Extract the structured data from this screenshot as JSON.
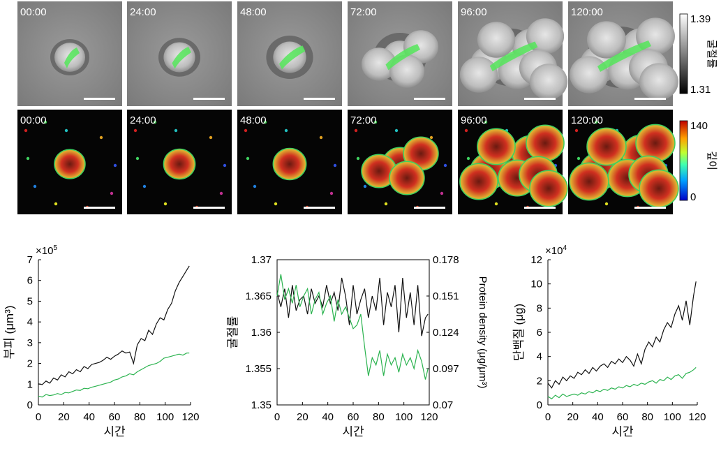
{
  "colors": {
    "black_series": "#111111",
    "green_series": "#2bb34f",
    "ri_overlay": "#55e65a",
    "cbar_hot": "#ff0000",
    "cbar_cold": "#0000ff"
  },
  "panel_a": {
    "time_labels": [
      "00:00",
      "24:00",
      "48:00",
      "72:00",
      "96:00",
      "120:00"
    ],
    "colorbar_ri": {
      "max": "1.39",
      "min": "1.31",
      "title": "굴절률"
    },
    "colorbar_depth": {
      "max": "140",
      "min": "0",
      "title": "깊이"
    }
  },
  "chart_data": [
    {
      "type": "line",
      "x_title": "시간",
      "y_title": "부피 (μm³)",
      "exponent": "×10",
      "exponent_power": "5",
      "xlim": [
        0,
        120
      ],
      "ylim": [
        0,
        7
      ],
      "xticks": [
        "0",
        "20",
        "40",
        "60",
        "80",
        "100",
        "120"
      ],
      "yticks": [
        "0",
        "1",
        "2",
        "3",
        "4",
        "5",
        "6",
        "7"
      ],
      "x": [
        0,
        3,
        6,
        9,
        12,
        15,
        18,
        21,
        24,
        27,
        30,
        33,
        36,
        39,
        42,
        45,
        48,
        51,
        54,
        57,
        60,
        63,
        66,
        69,
        72,
        75,
        78,
        81,
        84,
        87,
        90,
        93,
        96,
        99,
        102,
        105,
        108,
        111,
        114,
        117,
        119
      ],
      "series": [
        {
          "values": [
            1.02,
            0.98,
            1.15,
            1.05,
            1.3,
            1.2,
            1.45,
            1.35,
            1.6,
            1.5,
            1.7,
            1.6,
            1.85,
            1.75,
            1.95,
            2.0,
            2.05,
            2.15,
            2.3,
            2.2,
            2.35,
            2.45,
            2.6,
            2.5,
            2.55,
            2.0,
            2.9,
            3.2,
            3.1,
            3.6,
            3.4,
            3.9,
            4.2,
            4.1,
            4.6,
            4.9,
            5.5,
            5.9,
            6.2,
            6.5,
            6.7
          ]
        },
        {
          "values": [
            0.42,
            0.38,
            0.5,
            0.45,
            0.48,
            0.55,
            0.5,
            0.6,
            0.58,
            0.65,
            0.72,
            0.7,
            0.8,
            0.78,
            0.85,
            0.9,
            0.95,
            1.0,
            1.05,
            1.1,
            1.2,
            1.25,
            1.35,
            1.4,
            1.5,
            1.45,
            1.6,
            1.7,
            1.8,
            1.9,
            1.95,
            2.0,
            2.1,
            2.25,
            2.3,
            2.35,
            2.4,
            2.45,
            2.4,
            2.5,
            2.5
          ]
        }
      ]
    },
    {
      "type": "line",
      "x_title": "시간",
      "y_title": "굴절률",
      "y2_title": "Protein density (μg/μm³)",
      "xlim": [
        0,
        120
      ],
      "ylim": [
        1.35,
        1.37
      ],
      "y2lim": [
        0.07,
        0.178
      ],
      "xticks": [
        "0",
        "20",
        "40",
        "60",
        "80",
        "100",
        "120"
      ],
      "yticks": [
        "1.35",
        "1.355",
        "1.36",
        "1.365",
        "1.37"
      ],
      "y2ticks": [
        "0.07",
        "0.097",
        "0.124",
        "0.151",
        "0.178"
      ],
      "x": [
        0,
        3,
        6,
        9,
        12,
        15,
        18,
        21,
        24,
        27,
        30,
        33,
        36,
        39,
        42,
        45,
        48,
        51,
        54,
        57,
        60,
        63,
        66,
        69,
        72,
        75,
        78,
        81,
        84,
        87,
        90,
        93,
        96,
        99,
        102,
        105,
        108,
        111,
        114,
        117,
        119
      ],
      "series": [
        {
          "values": [
            1.3655,
            1.3635,
            1.366,
            1.362,
            1.3665,
            1.363,
            1.3645,
            1.365,
            1.3625,
            1.366,
            1.364,
            1.365,
            1.3635,
            1.3665,
            1.364,
            1.3655,
            1.363,
            1.3675,
            1.365,
            1.361,
            1.3665,
            1.3625,
            1.3645,
            1.366,
            1.362,
            1.365,
            1.363,
            1.3675,
            1.361,
            1.3655,
            1.3635,
            1.3665,
            1.36,
            1.3675,
            1.362,
            1.3655,
            1.361,
            1.3665,
            1.3595,
            1.362,
            1.3625
          ]
        },
        {
          "values": [
            1.365,
            1.368,
            1.3645,
            1.366,
            1.364,
            1.3665,
            1.3635,
            1.365,
            1.366,
            1.3625,
            1.3645,
            1.3655,
            1.3625,
            1.364,
            1.365,
            1.3615,
            1.3645,
            1.3625,
            1.3635,
            1.362,
            1.3605,
            1.361,
            1.3625,
            1.358,
            1.354,
            1.3565,
            1.3555,
            1.3575,
            1.354,
            1.357,
            1.3555,
            1.3565,
            1.3545,
            1.357,
            1.3555,
            1.3565,
            1.355,
            1.3575,
            1.356,
            1.3535,
            1.355
          ]
        }
      ]
    },
    {
      "type": "line",
      "x_title": "시간",
      "y_title": "단백질 (μg)",
      "exponent": "×10",
      "exponent_power": "4",
      "xlim": [
        0,
        120
      ],
      "ylim": [
        0,
        12
      ],
      "xticks": [
        "0",
        "20",
        "40",
        "60",
        "80",
        "100",
        "120"
      ],
      "yticks": [
        "0",
        "2",
        "4",
        "6",
        "8",
        "10",
        "12"
      ],
      "x": [
        0,
        3,
        6,
        9,
        12,
        15,
        18,
        21,
        24,
        27,
        30,
        33,
        36,
        39,
        42,
        45,
        48,
        51,
        54,
        57,
        60,
        63,
        66,
        69,
        72,
        75,
        78,
        81,
        84,
        87,
        90,
        93,
        96,
        99,
        102,
        105,
        108,
        111,
        114,
        117,
        119
      ],
      "series": [
        {
          "values": [
            1.8,
            1.4,
            2.0,
            1.7,
            2.3,
            2.0,
            2.4,
            2.2,
            2.7,
            2.5,
            2.9,
            2.6,
            3.1,
            2.8,
            3.2,
            3.4,
            3.1,
            3.6,
            3.4,
            3.8,
            3.5,
            4.0,
            3.7,
            3.2,
            4.2,
            3.4,
            4.6,
            5.2,
            4.8,
            5.6,
            5.2,
            6.2,
            6.8,
            6.4,
            7.5,
            8.2,
            7.0,
            8.6,
            6.6,
            9.0,
            10.2
          ]
        },
        {
          "values": [
            0.7,
            0.5,
            0.8,
            0.6,
            0.9,
            0.7,
            0.8,
            0.9,
            0.8,
            1.0,
            0.9,
            1.1,
            1.0,
            1.2,
            1.1,
            1.3,
            1.2,
            1.4,
            1.3,
            1.5,
            1.4,
            1.6,
            1.5,
            1.7,
            1.6,
            1.8,
            1.7,
            1.9,
            2.0,
            1.8,
            2.1,
            2.0,
            2.3,
            2.1,
            2.4,
            2.5,
            2.2,
            2.6,
            2.7,
            2.9,
            3.1
          ]
        }
      ]
    }
  ]
}
